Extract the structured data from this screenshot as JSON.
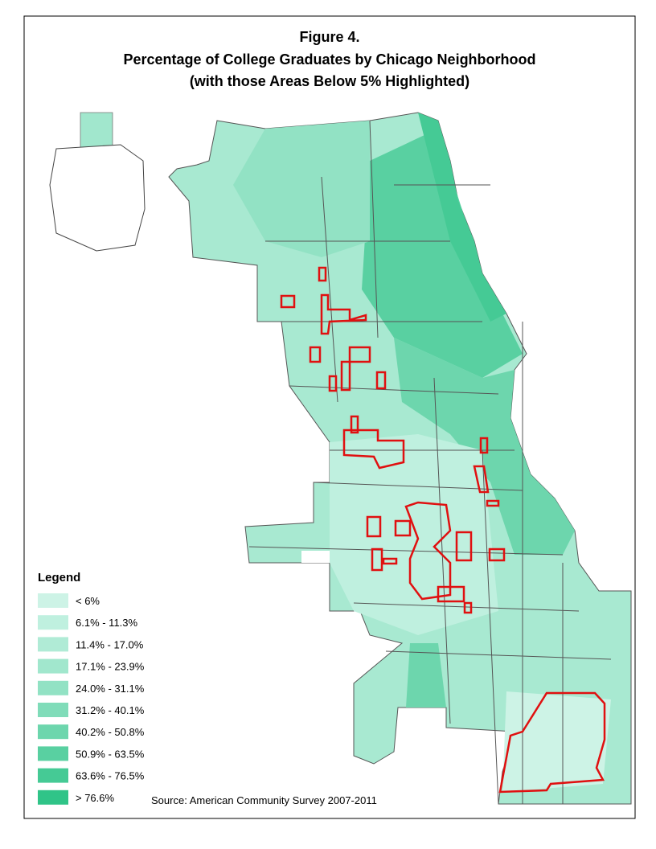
{
  "title_lines": [
    "Figure 4.",
    "Percentage of College Graduates by Chicago Neighborhood",
    "(with those Areas Below 5% Highlighted)"
  ],
  "legend": {
    "title": "Legend",
    "items": [
      {
        "label": "< 6%",
        "color": "#cdf3e6"
      },
      {
        "label": "6.1% - 11.3%",
        "color": "#bff0df"
      },
      {
        "label": "11.4% - 17.0%",
        "color": "#b0ebd6"
      },
      {
        "label": "17.1% - 23.9%",
        "color": "#a1e7cd"
      },
      {
        "label": "24.0% - 31.1%",
        "color": "#92e2c4"
      },
      {
        "label": "31.2% - 40.1%",
        "color": "#80dcb9"
      },
      {
        "label": "40.2% - 50.8%",
        "color": "#6dd6ad"
      },
      {
        "label": "50.9% - 63.5%",
        "color": "#59d0a1"
      },
      {
        "label": "63.6% - 76.5%",
        "color": "#45ca95"
      },
      {
        "label": "> 76.6%",
        "color": "#30c488"
      }
    ]
  },
  "source": "Source: American Community Survey 2007-2011"
}
